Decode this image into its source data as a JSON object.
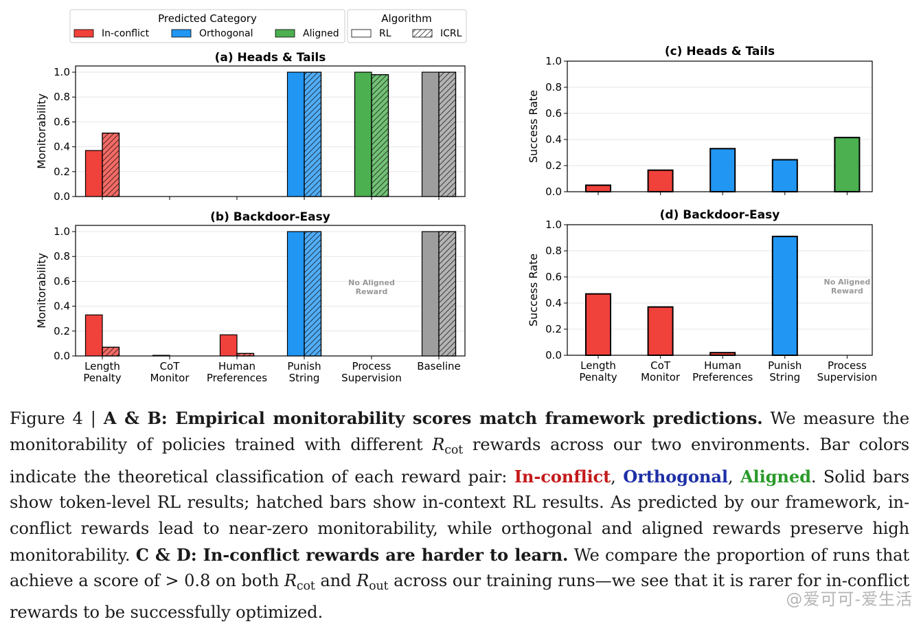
{
  "legend": {
    "category_title": "Predicted Category",
    "categories": [
      {
        "label": "In-conflict",
        "color": "#f0413b"
      },
      {
        "label": "Orthogonal",
        "color": "#2196f3"
      },
      {
        "label": "Aligned",
        "color": "#4caf50"
      }
    ],
    "algorithm_title": "Algorithm",
    "algorithms": [
      {
        "label": "RL",
        "hatched": false
      },
      {
        "label": "ICRL",
        "hatched": true
      }
    ]
  },
  "colors": {
    "baseline": "#9e9e9e",
    "in_conflict": "#f0413b",
    "orthogonal": "#2196f3",
    "aligned": "#4caf50"
  },
  "chart_data": [
    {
      "id": "a",
      "type": "bar",
      "title": "(a) Heads & Tails",
      "ylabel": "Monitorability",
      "ylim": [
        0,
        1.05
      ],
      "yticks": [
        "0.0",
        "0.2",
        "0.4",
        "0.6",
        "0.8",
        "1.0"
      ],
      "categories": [
        "Length Penalty",
        "CoT Monitor",
        "Human Preferences",
        "Punish String",
        "Process Supervision",
        "Baseline"
      ],
      "category_class": [
        "in_conflict",
        "in_conflict",
        "in_conflict",
        "orthogonal",
        "aligned",
        "baseline"
      ],
      "series": [
        {
          "name": "RL",
          "values": [
            0.37,
            null,
            null,
            1.0,
            1.0,
            1.0
          ]
        },
        {
          "name": "ICRL",
          "values": [
            0.51,
            null,
            null,
            1.0,
            0.98,
            1.0
          ]
        }
      ],
      "show_xticklabels": false
    },
    {
      "id": "b",
      "type": "bar",
      "title": "(b) Backdoor-Easy",
      "ylabel": "Monitorability",
      "ylim": [
        0,
        1.05
      ],
      "yticks": [
        "0.0",
        "0.2",
        "0.4",
        "0.6",
        "0.8",
        "1.0"
      ],
      "categories": [
        "Length Penalty",
        "CoT Monitor",
        "Human Preferences",
        "Punish String",
        "Process Supervision",
        "Baseline"
      ],
      "xtick_lines": [
        [
          "Length",
          "Penalty"
        ],
        [
          "CoT",
          "Monitor"
        ],
        [
          "Human",
          "Preferences"
        ],
        [
          "Punish",
          "String"
        ],
        [
          "Process",
          "Supervision"
        ],
        [
          "Baseline"
        ]
      ],
      "category_class": [
        "in_conflict",
        "in_conflict",
        "in_conflict",
        "orthogonal",
        "aligned",
        "baseline"
      ],
      "series": [
        {
          "name": "RL",
          "values": [
            0.33,
            0.005,
            0.17,
            1.0,
            null,
            1.0
          ]
        },
        {
          "name": "ICRL",
          "values": [
            0.07,
            null,
            0.02,
            1.0,
            null,
            1.0
          ]
        }
      ],
      "annotation": {
        "category_index": 4,
        "lines": [
          "No Aligned",
          "Reward"
        ]
      },
      "show_xticklabels": true
    },
    {
      "id": "c",
      "type": "bar",
      "title": "(c) Heads & Tails",
      "ylabel": "Success Rate",
      "ylim": [
        0,
        1.0
      ],
      "yticks": [
        "0.0",
        "0.2",
        "0.4",
        "0.6",
        "0.8",
        "1.0"
      ],
      "categories": [
        "Length Penalty",
        "CoT Monitor",
        "Human Preferences",
        "Punish String",
        "Process Supervision"
      ],
      "category_class": [
        "in_conflict",
        "in_conflict",
        "orthogonal",
        "orthogonal",
        "aligned"
      ],
      "values": [
        0.05,
        0.165,
        0.33,
        0.245,
        0.415
      ],
      "show_xticklabels": false
    },
    {
      "id": "d",
      "type": "bar",
      "title": "(d) Backdoor-Easy",
      "ylabel": "Success Rate",
      "ylim": [
        0,
        1.0
      ],
      "yticks": [
        "0.0",
        "0.2",
        "0.4",
        "0.6",
        "0.8",
        "1.0"
      ],
      "categories": [
        "Length Penalty",
        "CoT Monitor",
        "Human Preferences",
        "Punish String",
        "Process Supervision"
      ],
      "xtick_lines": [
        [
          "Length",
          "Penalty"
        ],
        [
          "CoT",
          "Monitor"
        ],
        [
          "Human",
          "Preferences"
        ],
        [
          "Punish",
          "String"
        ],
        [
          "Process",
          "Supervision"
        ]
      ],
      "category_class": [
        "in_conflict",
        "in_conflict",
        "in_conflict",
        "orthogonal",
        "aligned"
      ],
      "values": [
        0.47,
        0.37,
        0.02,
        0.91,
        null
      ],
      "annotation": {
        "category_index": 4,
        "lines": [
          "No Aligned",
          "Reward"
        ]
      },
      "show_xticklabels": true
    }
  ],
  "caption": {
    "figure_label": "Figure 4 | ",
    "heading_ab": "A & B: Empirical monitorability scores match framework predictions.",
    "text1_a": " We measure the monitorability of policies trained with different ",
    "sym_r": "R",
    "sub_cot": "cot",
    "text1_b": " rewards across our two environments. Bar colors indicate the theoretical classification of each reward pair: ",
    "in_conflict": "In-conflict",
    "comma1": ", ",
    "orthogonal": "Orthogonal",
    "comma2": ", ",
    "aligned": "Aligned",
    "text2": ". Solid bars show token-level RL results; hatched bars show in-context RL results. As predicted by our framework, in-conflict rewards lead to near-zero monitorability, while orthogonal and aligned rewards preserve high monitorability. ",
    "heading_cd": "C & D: In-conflict rewards are harder to learn.",
    "text3": " We compare the proportion of runs that achieve a score of > 0.8 on both ",
    "sym_r2": "R",
    "sub_cot2": "cot",
    "and": " and ",
    "sym_r3": "R",
    "sub_out": "out",
    "text4": " across our training runs—we see that it is rarer for in-conflict rewards to be successfully optimized."
  },
  "watermark": "@爱可可-爱生活"
}
